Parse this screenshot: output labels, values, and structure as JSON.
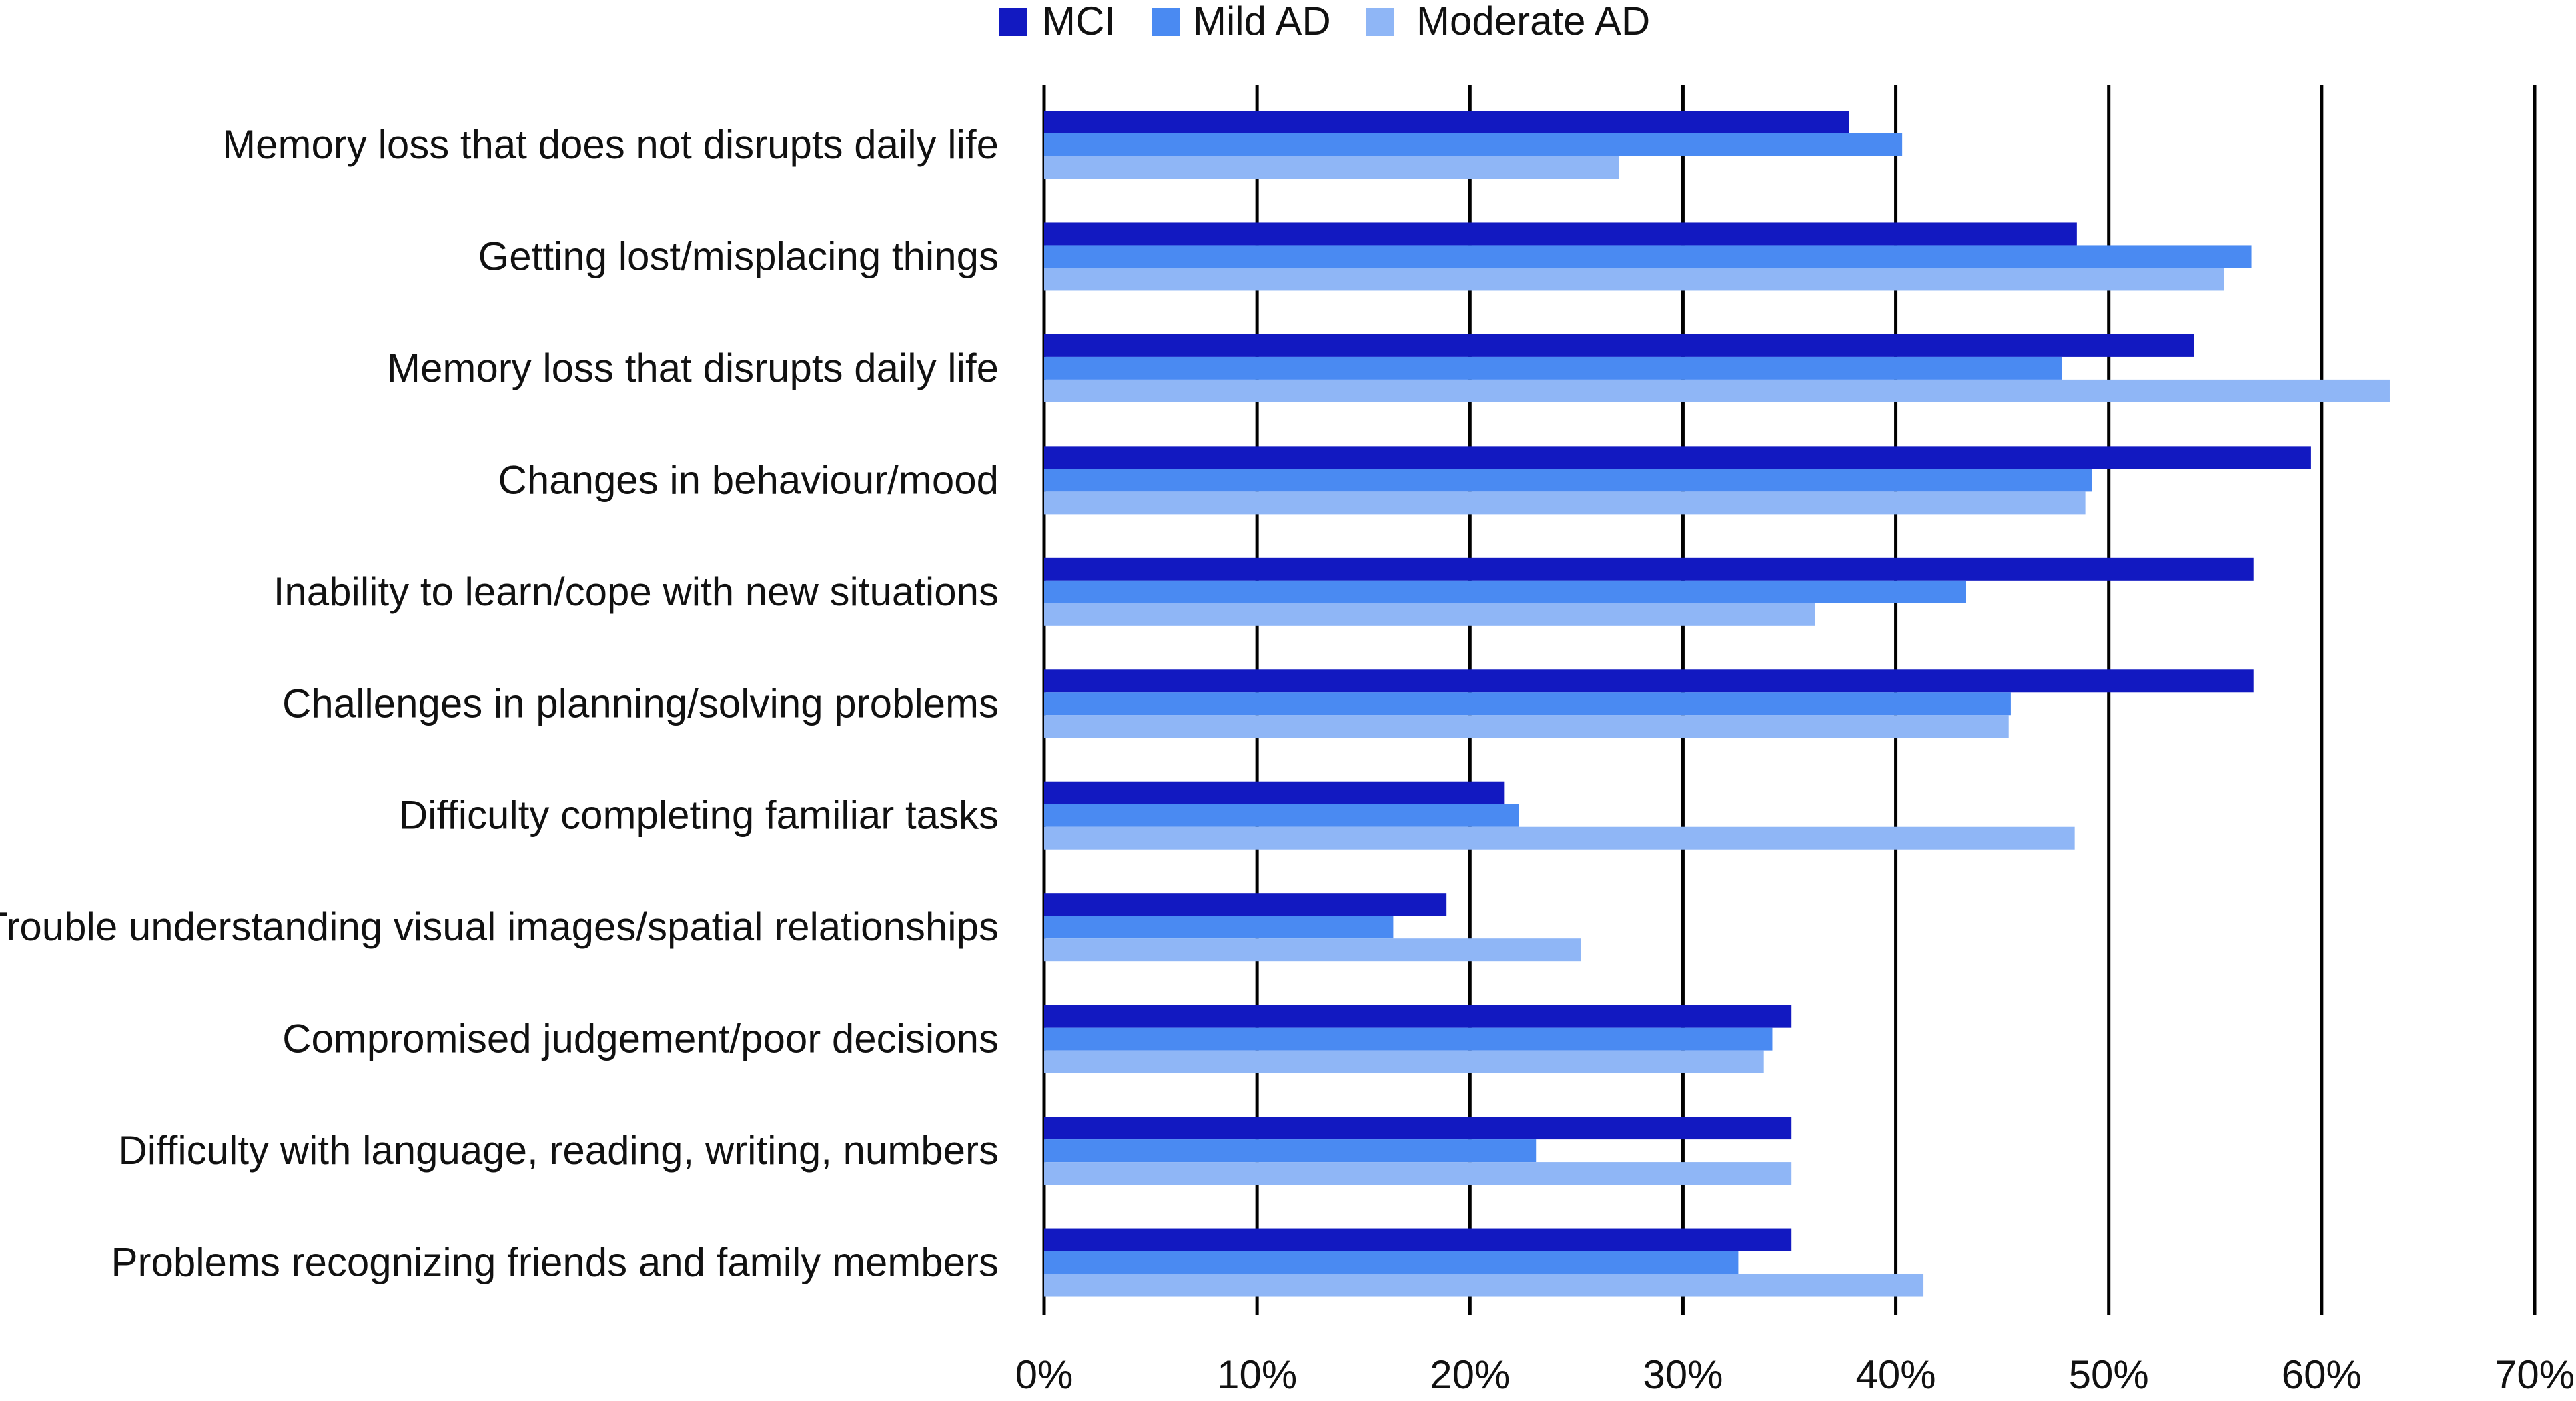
{
  "chart_data": {
    "type": "bar",
    "orientation": "horizontal",
    "title": "",
    "xlabel": "",
    "ylabel": "",
    "xlim": [
      0,
      70
    ],
    "x_ticks": [
      "0%",
      "10%",
      "20%",
      "30%",
      "40%",
      "50%",
      "60%",
      "70%"
    ],
    "grid": "vertical",
    "legend_position": "top",
    "categories": [
      "Memory loss that does not disrupts daily life",
      "Getting lost/misplacing things",
      "Memory loss that disrupts daily life",
      "Changes in behaviour/mood",
      "Inability to learn/cope with new situations",
      "Challenges in planning/solving problems",
      "Difficulty completing familiar tasks",
      "Trouble understanding visual images/spatial relationships",
      "Compromised judgement/poor decisions",
      "Difficulty with language, reading, writing, numbers",
      "Problems recognizing friends and family members"
    ],
    "series": [
      {
        "name": "MCI",
        "color": "#1219c1",
        "values": [
          37.8,
          48.5,
          54.0,
          59.5,
          56.8,
          56.8,
          21.6,
          18.9,
          35.1,
          35.1,
          35.1
        ]
      },
      {
        "name": "Mild AD",
        "color": "#4a8af2",
        "values": [
          40.3,
          56.7,
          47.8,
          49.2,
          43.3,
          45.4,
          22.3,
          16.4,
          34.2,
          23.1,
          32.6
        ]
      },
      {
        "name": "Moderate AD",
        "color": "#8fb6f6",
        "values": [
          27.0,
          55.4,
          63.2,
          48.9,
          36.2,
          45.3,
          48.4,
          25.2,
          33.8,
          35.1,
          41.3
        ]
      }
    ]
  }
}
